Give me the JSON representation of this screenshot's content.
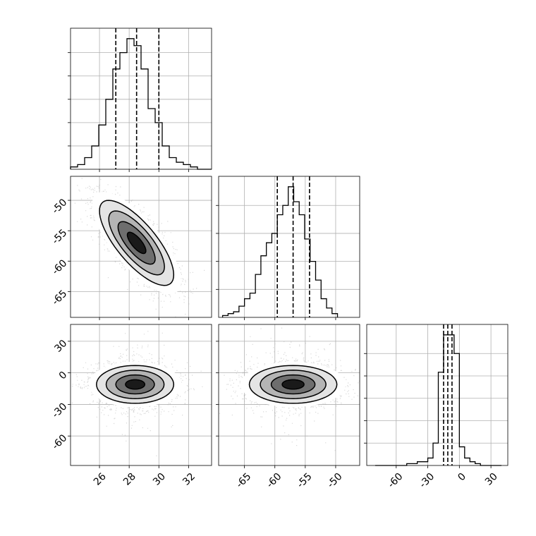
{
  "chart_data": {
    "type": "corner",
    "grid": true,
    "tick_labels": {
      "p0": [
        "26",
        "28",
        "30",
        "32"
      ],
      "p1": [
        "-65",
        "-60",
        "-55",
        "-50"
      ],
      "p2": [
        "-60",
        "-30",
        "0",
        "30"
      ]
    },
    "ranges": {
      "p0": [
        24.05,
        33.55
      ],
      "p1": [
        -69.25,
        -46.05
      ],
      "p2": [
        -88,
        46
      ]
    },
    "quantiles": {
      "p0": [
        27.1,
        28.5,
        30.0
      ],
      "p1": [
        -59.6,
        -57.0,
        -54.3
      ],
      "p2": [
        -15,
        -11,
        -7
      ]
    },
    "hist_p0": {
      "bins": [
        24.05,
        24.525,
        25.0,
        25.475,
        25.95,
        26.425,
        26.9,
        27.375,
        27.85,
        28.325,
        28.8,
        29.275,
        29.75,
        30.225,
        30.7,
        31.175,
        31.65,
        32.125,
        32.6,
        33.075,
        33.55
      ],
      "counts": [
        1,
        2,
        5,
        10,
        19,
        30,
        43,
        50,
        56,
        53,
        43,
        26,
        20,
        10,
        5,
        3,
        2,
        1,
        0,
        0
      ]
    },
    "hist_p1": {
      "bins": [
        -68.6,
        -67.7,
        -66.8,
        -65.9,
        -65.0,
        -64.1,
        -63.2,
        -62.3,
        -61.4,
        -60.5,
        -59.6,
        -58.7,
        -57.8,
        -56.9,
        -56.0,
        -55.1,
        -54.2,
        -53.3,
        -52.4,
        -51.5,
        -50.6,
        -49.7
      ],
      "counts": [
        1,
        2,
        3,
        6,
        10,
        13,
        23,
        33,
        40,
        45,
        55,
        60,
        70,
        62,
        55,
        42,
        30,
        20,
        10,
        5,
        2
      ]
    },
    "hist_p2": {
      "bins": [
        -80,
        -70,
        -60,
        -50,
        -40,
        -30,
        -25,
        -20,
        -15,
        -10,
        -5,
        0,
        5,
        10,
        15,
        20,
        25,
        30,
        40
      ],
      "counts": [
        0,
        0,
        0,
        1,
        2,
        4,
        12,
        50,
        70,
        70,
        60,
        10,
        4,
        2,
        1,
        0,
        0,
        0
      ]
    },
    "scatter": {
      "p0_p1": {
        "n": 3500,
        "mean": [
          28.5,
          -57.0
        ],
        "sd": [
          1.25,
          3.5
        ],
        "rho": -0.75
      },
      "p0_p2": {
        "n": 3500,
        "mean": [
          28.4,
          -11.0
        ],
        "sd": [
          1.3,
          9.0
        ],
        "rho": 0.0
      },
      "p1_p2": {
        "n": 3500,
        "mean": [
          -57.0,
          -11.0
        ],
        "sd": [
          3.6,
          9.0
        ],
        "rho": 0.0
      }
    },
    "contour_levels": [
      0.118,
      0.393,
      0.675,
      0.865
    ],
    "colors": {
      "hist_line": "#000000",
      "quantile_line": "#000000",
      "scatter": "#aaaaaa",
      "grid": "#b0b0b0"
    }
  }
}
